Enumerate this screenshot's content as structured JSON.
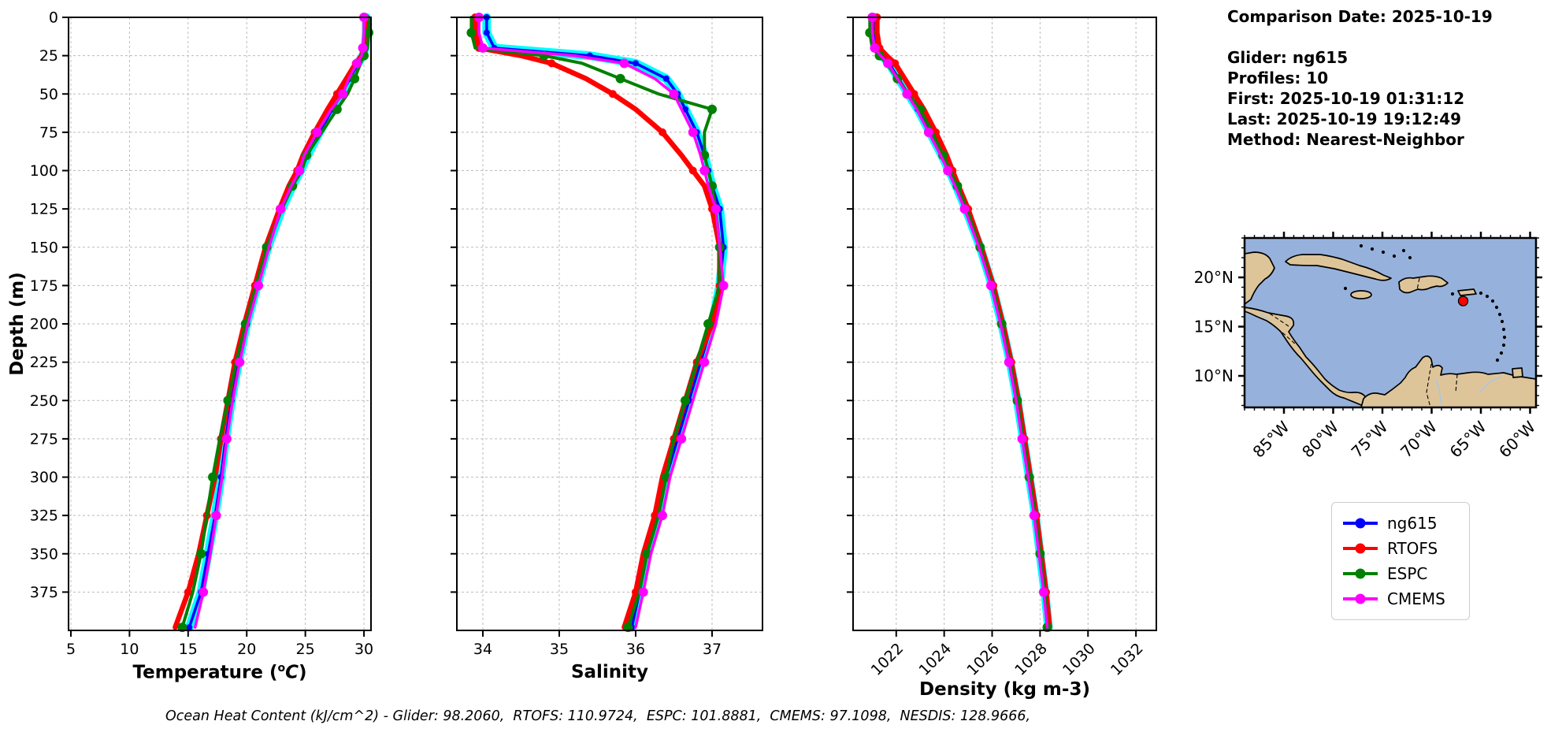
{
  "info_panel": {
    "comparison_date": "Comparison Date: 2025-10-19",
    "glider": "Glider: ng615",
    "profiles": "Profiles: 10",
    "first": "First: 2025-10-19 01:31:12",
    "last": "Last: 2025-10-19 19:12:49",
    "method": "Method: Nearest-Neighbor"
  },
  "footer": {
    "ohc_text": "Ocean Heat Content (kJ/cm^2) - Glider: 98.2060,  RTOFS: 110.9724,  ESPC: 101.8881,  CMEMS: 97.1098,  NESDIS: 128.9666,"
  },
  "depth_axis": {
    "label": "Depth (m)",
    "ticks": [
      0,
      25,
      50,
      75,
      100,
      125,
      150,
      175,
      200,
      225,
      250,
      275,
      300,
      325,
      350,
      375
    ],
    "max": 400
  },
  "legend": {
    "items": [
      {
        "label": "ng615",
        "color": "#0000ff"
      },
      {
        "label": "RTOFS",
        "color": "#ff0000"
      },
      {
        "label": "ESPC",
        "color": "#008000"
      },
      {
        "label": "CMEMS",
        "color": "#ff00ff"
      }
    ]
  },
  "colors": {
    "grid": "#bbbbbb",
    "envelope": "#00ffff",
    "spine": "#000000"
  },
  "chart_data": [
    {
      "type": "line",
      "key": "temperature",
      "xlabel_parts": {
        "pre": "Temperature (",
        "sup": "o",
        "it": "C",
        "post": ")"
      },
      "xlabel": "Temperature (oC)",
      "ylabel": "Depth (m)",
      "xlim": [
        4.8,
        30.6
      ],
      "xticks": [
        5,
        10,
        15,
        20,
        25,
        30
      ],
      "rotate_xticklabels": false,
      "ylim": [
        0,
        400
      ],
      "grid": true,
      "legend_position": "outside-right",
      "depths": [
        0,
        10,
        20,
        25,
        30,
        40,
        50,
        60,
        75,
        90,
        100,
        110,
        125,
        150,
        175,
        200,
        225,
        250,
        275,
        300,
        325,
        350,
        375,
        398
      ],
      "series": [
        {
          "name": "ng615",
          "color": "#0000ff",
          "linewidth": 3.5,
          "marker_r": 4,
          "marker_every": 1,
          "marker_offset": 0,
          "envelope": "#00ffff",
          "values": [
            30.2,
            30.2,
            30.1,
            29.9,
            29.5,
            28.8,
            28.1,
            27.3,
            26.2,
            25.2,
            24.6,
            23.9,
            23.0,
            21.8,
            20.9,
            20.0,
            19.3,
            18.7,
            18.2,
            17.8,
            17.3,
            16.7,
            16.1,
            15.1
          ]
        },
        {
          "name": "RTOFS",
          "color": "#ff0000",
          "linewidth": 6.5,
          "marker_r": 5,
          "marker_every": 2,
          "marker_offset": 0,
          "values": [
            30.1,
            30.1,
            30.0,
            29.8,
            29.3,
            28.5,
            27.7,
            26.9,
            25.8,
            24.8,
            24.3,
            23.6,
            22.8,
            21.6,
            20.7,
            19.8,
            19.0,
            18.4,
            17.8,
            17.3,
            16.6,
            15.9,
            15.0,
            13.9
          ]
        },
        {
          "name": "ESPC",
          "color": "#008000",
          "linewidth": 4,
          "marker_r": 6,
          "marker_every": 2,
          "marker_offset": 1,
          "values": [
            30.4,
            30.4,
            30.3,
            30.0,
            29.7,
            29.2,
            28.6,
            27.7,
            26.4,
            25.1,
            24.7,
            23.9,
            23.0,
            21.7,
            20.8,
            19.9,
            19.1,
            18.4,
            17.7,
            17.1,
            16.6,
            16.1,
            15.4,
            14.5
          ]
        },
        {
          "name": "CMEMS",
          "color": "#ff00ff",
          "linewidth": 3.5,
          "marker_r": 6,
          "marker_every": 2,
          "marker_offset": 0,
          "values": [
            30.0,
            30.0,
            29.9,
            29.8,
            29.4,
            28.7,
            28.2,
            27.2,
            26.0,
            24.9,
            24.5,
            23.8,
            22.9,
            21.9,
            21.0,
            20.1,
            19.4,
            18.8,
            18.3,
            17.9,
            17.4,
            16.9,
            16.3,
            15.6
          ]
        }
      ]
    },
    {
      "type": "line",
      "key": "salinity",
      "xlabel": "Salinity",
      "ylabel": "Depth (m)",
      "xlim": [
        33.66,
        37.66
      ],
      "xticks": [
        34,
        35,
        36,
        37
      ],
      "rotate_xticklabels": false,
      "ylim": [
        0,
        400
      ],
      "grid": true,
      "depths": [
        0,
        10,
        20,
        25,
        30,
        40,
        50,
        60,
        75,
        90,
        100,
        110,
        125,
        150,
        175,
        200,
        225,
        250,
        275,
        300,
        325,
        350,
        375,
        398
      ],
      "series": [
        {
          "name": "ng615",
          "color": "#0000ff",
          "linewidth": 3.5,
          "marker_r": 4,
          "marker_every": 1,
          "marker_offset": 0,
          "envelope": "#00ffff",
          "values": [
            34.05,
            34.05,
            34.15,
            35.4,
            36.0,
            36.4,
            36.55,
            36.65,
            36.8,
            36.9,
            36.95,
            37.0,
            37.1,
            37.15,
            37.1,
            37.0,
            36.85,
            36.7,
            36.55,
            36.4,
            36.3,
            36.15,
            36.05,
            35.95
          ]
        },
        {
          "name": "RTOFS",
          "color": "#ff0000",
          "linewidth": 6.5,
          "marker_r": 5,
          "marker_every": 2,
          "marker_offset": 0,
          "values": [
            33.9,
            33.9,
            33.95,
            34.5,
            34.9,
            35.35,
            35.7,
            36.0,
            36.35,
            36.6,
            36.75,
            36.9,
            37.0,
            37.1,
            37.1,
            37.0,
            36.8,
            36.65,
            36.5,
            36.35,
            36.25,
            36.1,
            36.0,
            35.85
          ]
        },
        {
          "name": "ESPC",
          "color": "#008000",
          "linewidth": 4,
          "marker_r": 6,
          "marker_every": 2,
          "marker_offset": 1,
          "values": [
            33.85,
            33.85,
            33.9,
            34.8,
            35.3,
            35.8,
            36.3,
            37.0,
            36.9,
            36.9,
            36.95,
            37.0,
            37.05,
            37.1,
            37.1,
            36.95,
            36.8,
            36.65,
            36.5,
            36.4,
            36.3,
            36.15,
            36.05,
            35.9
          ]
        },
        {
          "name": "CMEMS",
          "color": "#ff00ff",
          "linewidth": 3.5,
          "marker_r": 6,
          "marker_every": 2,
          "marker_offset": 0,
          "values": [
            33.95,
            33.95,
            34.0,
            35.2,
            35.85,
            36.25,
            36.5,
            36.6,
            36.75,
            36.85,
            36.9,
            36.95,
            37.05,
            37.1,
            37.15,
            37.05,
            36.9,
            36.75,
            36.6,
            36.45,
            36.35,
            36.2,
            36.1,
            36.0
          ]
        }
      ]
    },
    {
      "type": "line",
      "key": "density",
      "xlabel": "Density (kg m-3)",
      "ylabel": "Depth (m)",
      "xlim": [
        1020.2,
        1032.85
      ],
      "xticks": [
        1022,
        1024,
        1026,
        1028,
        1030,
        1032
      ],
      "rotate_xticklabels": true,
      "ylim": [
        0,
        400
      ],
      "grid": true,
      "depths": [
        0,
        10,
        20,
        25,
        30,
        40,
        50,
        60,
        75,
        90,
        100,
        110,
        125,
        150,
        175,
        200,
        225,
        250,
        275,
        300,
        325,
        350,
        375,
        398
      ],
      "series": [
        {
          "name": "ng615",
          "color": "#0000ff",
          "linewidth": 3.5,
          "marker_r": 4,
          "marker_every": 1,
          "marker_offset": 0,
          "envelope": "#00ffff",
          "values": [
            1021.1,
            1021.1,
            1021.2,
            1021.4,
            1021.7,
            1022.1,
            1022.5,
            1022.9,
            1023.4,
            1023.9,
            1024.2,
            1024.5,
            1024.9,
            1025.5,
            1026.0,
            1026.4,
            1026.75,
            1027.05,
            1027.3,
            1027.55,
            1027.8,
            1028.0,
            1028.2,
            1028.35
          ]
        },
        {
          "name": "RTOFS",
          "color": "#ff0000",
          "linewidth": 6.5,
          "marker_r": 5,
          "marker_every": 2,
          "marker_offset": 0,
          "values": [
            1021.2,
            1021.2,
            1021.3,
            1021.6,
            1021.95,
            1022.35,
            1022.75,
            1023.15,
            1023.65,
            1024.1,
            1024.35,
            1024.6,
            1025.0,
            1025.55,
            1026.05,
            1026.45,
            1026.8,
            1027.1,
            1027.35,
            1027.6,
            1027.85,
            1028.05,
            1028.25,
            1028.4
          ]
        },
        {
          "name": "ESPC",
          "color": "#008000",
          "linewidth": 4,
          "marker_r": 6,
          "marker_every": 2,
          "marker_offset": 1,
          "values": [
            1020.9,
            1020.9,
            1021.0,
            1021.3,
            1021.6,
            1022.05,
            1022.5,
            1023.0,
            1023.5,
            1023.95,
            1024.25,
            1024.55,
            1024.95,
            1025.5,
            1026.0,
            1026.4,
            1026.75,
            1027.05,
            1027.3,
            1027.55,
            1027.8,
            1028.0,
            1028.2,
            1028.3
          ]
        },
        {
          "name": "CMEMS",
          "color": "#ff00ff",
          "linewidth": 3.5,
          "marker_r": 6,
          "marker_every": 2,
          "marker_offset": 0,
          "values": [
            1021.0,
            1021.0,
            1021.1,
            1021.35,
            1021.65,
            1022.05,
            1022.45,
            1022.85,
            1023.35,
            1023.85,
            1024.15,
            1024.45,
            1024.85,
            1025.45,
            1025.95,
            1026.35,
            1026.7,
            1027.0,
            1027.25,
            1027.5,
            1027.75,
            1027.95,
            1028.15,
            1028.3
          ]
        }
      ]
    }
  ],
  "map": {
    "ocean_color": "#96b2dc",
    "land_color": "#dec599",
    "coast_color": "#000000",
    "river_color": "#a9c7e6",
    "extent": {
      "lon_west": 89,
      "lon_east": 59.4,
      "lat_north": 24,
      "lat_south": 6.8
    },
    "lat_ticks": [
      {
        "label": "20°N",
        "lat": 20
      },
      {
        "label": "15°N",
        "lat": 15
      },
      {
        "label": "10°N",
        "lat": 10
      }
    ],
    "lon_ticks": [
      {
        "label": "85°W",
        "lon": 85
      },
      {
        "label": "80°W",
        "lon": 80
      },
      {
        "label": "75°W",
        "lon": 75
      },
      {
        "label": "70°W",
        "lon": 70
      },
      {
        "label": "65°W",
        "lon": 65
      },
      {
        "label": "60°W",
        "lon": 60
      }
    ],
    "marker": {
      "lon": 66.8,
      "lat": 17.6,
      "color": "#ff0000"
    }
  }
}
